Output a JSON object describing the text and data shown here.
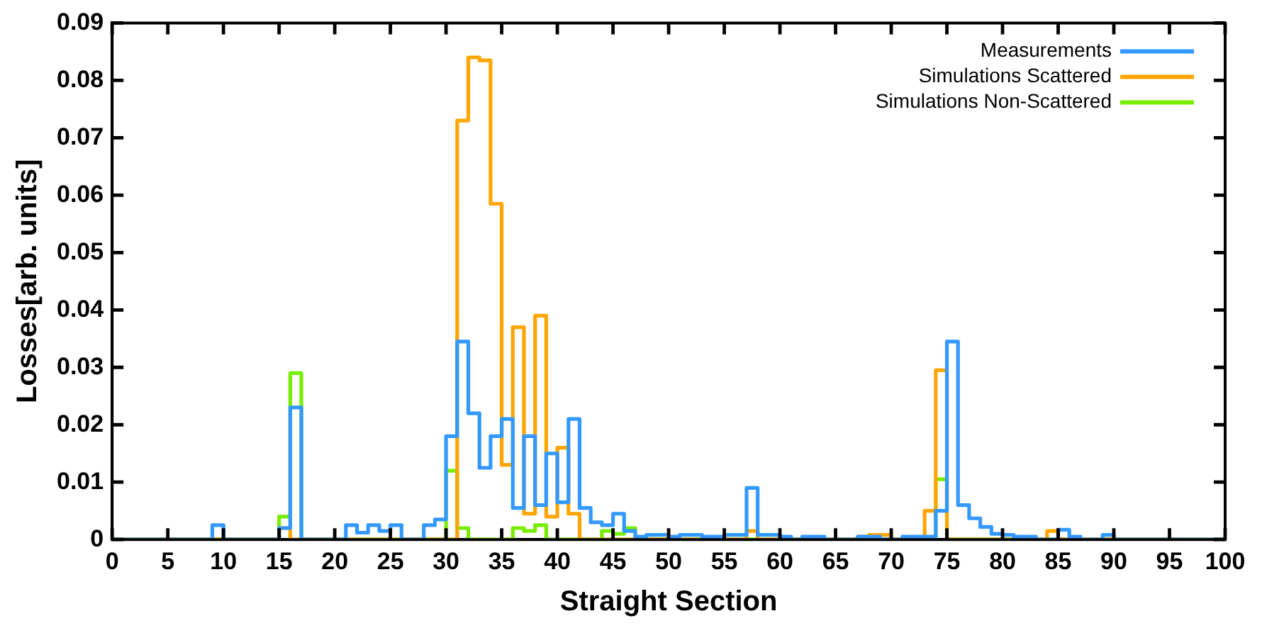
{
  "chart_data": {
    "type": "histogram",
    "xlabel": "Straight Section",
    "ylabel": "Losses[arb. units]",
    "bins": [
      0,
      1,
      2,
      3,
      4,
      5,
      6,
      7,
      8,
      9,
      10,
      11,
      12,
      13,
      14,
      15,
      16,
      17,
      18,
      19,
      20,
      21,
      22,
      23,
      24,
      25,
      26,
      27,
      28,
      29,
      30,
      31,
      32,
      33,
      34,
      35,
      36,
      37,
      38,
      39,
      40,
      41,
      42,
      43,
      44,
      45,
      46,
      47,
      48,
      49,
      50,
      51,
      52,
      53,
      54,
      55,
      56,
      57,
      58,
      59,
      60,
      61,
      62,
      63,
      64,
      65,
      66,
      67,
      68,
      69,
      70,
      71,
      72,
      73,
      74,
      75,
      76,
      77,
      78,
      79,
      80,
      81,
      82,
      83,
      84,
      85,
      86,
      87,
      88,
      89,
      90,
      91,
      92,
      93,
      94,
      95,
      96,
      97,
      98,
      99,
      100
    ],
    "series": [
      {
        "name": "Measurements",
        "color": "#3399ff",
        "values": [
          0,
          0,
          0,
          0,
          0,
          0,
          0,
          0,
          0,
          0.0025,
          0,
          0,
          0,
          0,
          0,
          0.002,
          0.023,
          0,
          0,
          0,
          0,
          0.0025,
          0.0012,
          0.0025,
          0.0015,
          0.0025,
          0,
          0,
          0.0025,
          0.0035,
          0.018,
          0.0345,
          0.022,
          0.0125,
          0.018,
          0.021,
          0.0055,
          0.018,
          0.006,
          0.015,
          0.0065,
          0.021,
          0.0055,
          0.003,
          0.0025,
          0.0045,
          0.0015,
          0.0005,
          0.0008,
          0.0008,
          0.0005,
          0.0008,
          0.0008,
          0.0005,
          0.0005,
          0.0008,
          0.0008,
          0.009,
          0.0008,
          0.0008,
          0.0005,
          0,
          0.0005,
          0.0005,
          0,
          0,
          0,
          0.0005,
          0.0005,
          0,
          0,
          0.0005,
          0.0005,
          0.0005,
          0.005,
          0.0345,
          0.006,
          0.0037,
          0.0022,
          0.001,
          0.0008,
          0.0005,
          0.0005,
          0,
          0,
          0.0017,
          0.0005,
          0,
          0,
          0.0008,
          0,
          0,
          0,
          0,
          0,
          0,
          0,
          0,
          0,
          0
        ]
      },
      {
        "name": "Simulations Scattered",
        "color": "#ffa500",
        "values": [
          0,
          0,
          0,
          0,
          0,
          0,
          0,
          0,
          0,
          0,
          0,
          0,
          0,
          0,
          0,
          0.002,
          0,
          0,
          0,
          0,
          0,
          0,
          0,
          0,
          0,
          0,
          0,
          0,
          0,
          0,
          0,
          0.073,
          0.084,
          0.0835,
          0.0585,
          0.013,
          0.037,
          0.0045,
          0.039,
          0.004,
          0.016,
          0.0045,
          0,
          0,
          0,
          0,
          0,
          0,
          0,
          0,
          0,
          0,
          0,
          0,
          0,
          0,
          0,
          0.0015,
          0,
          0,
          0,
          0,
          0,
          0,
          0,
          0,
          0,
          0.0005,
          0.0008,
          0.0008,
          0,
          0,
          0,
          0.005,
          0.0295,
          0,
          0,
          0,
          0,
          0,
          0,
          0,
          0,
          0,
          0.0015,
          0,
          0,
          0,
          0,
          0,
          0,
          0,
          0,
          0,
          0,
          0,
          0,
          0,
          0,
          0
        ]
      },
      {
        "name": "Simulations Non-Scattered",
        "color": "#77ee00",
        "values": [
          0,
          0,
          0,
          0,
          0,
          0,
          0,
          0,
          0,
          0,
          0,
          0,
          0,
          0,
          0,
          0.004,
          0.029,
          0,
          0,
          0,
          0,
          0,
          0,
          0,
          0,
          0,
          0,
          0,
          0,
          0,
          0.012,
          0.002,
          0,
          0,
          0,
          0,
          0.002,
          0.0015,
          0.0025,
          0,
          0,
          0,
          0,
          0,
          0.0015,
          0.001,
          0.002,
          0,
          0,
          0,
          0,
          0,
          0,
          0,
          0,
          0,
          0,
          0,
          0,
          0,
          0,
          0,
          0,
          0,
          0,
          0,
          0,
          0,
          0,
          0,
          0,
          0,
          0,
          0,
          0.0105,
          0,
          0,
          0,
          0,
          0,
          0,
          0,
          0,
          0,
          0,
          0,
          0,
          0,
          0,
          0,
          0,
          0,
          0,
          0,
          0,
          0,
          0,
          0,
          0,
          0
        ]
      }
    ],
    "xlim": [
      0,
      100
    ],
    "xticks": [
      0,
      5,
      10,
      15,
      20,
      25,
      30,
      35,
      40,
      45,
      50,
      55,
      60,
      65,
      70,
      75,
      80,
      85,
      90,
      95,
      100
    ],
    "ylim": [
      0,
      0.09
    ],
    "yticks": [
      0,
      0.01,
      0.02,
      0.03,
      0.04,
      0.05,
      0.06,
      0.07,
      0.08,
      0.09
    ],
    "legend": "top right"
  }
}
